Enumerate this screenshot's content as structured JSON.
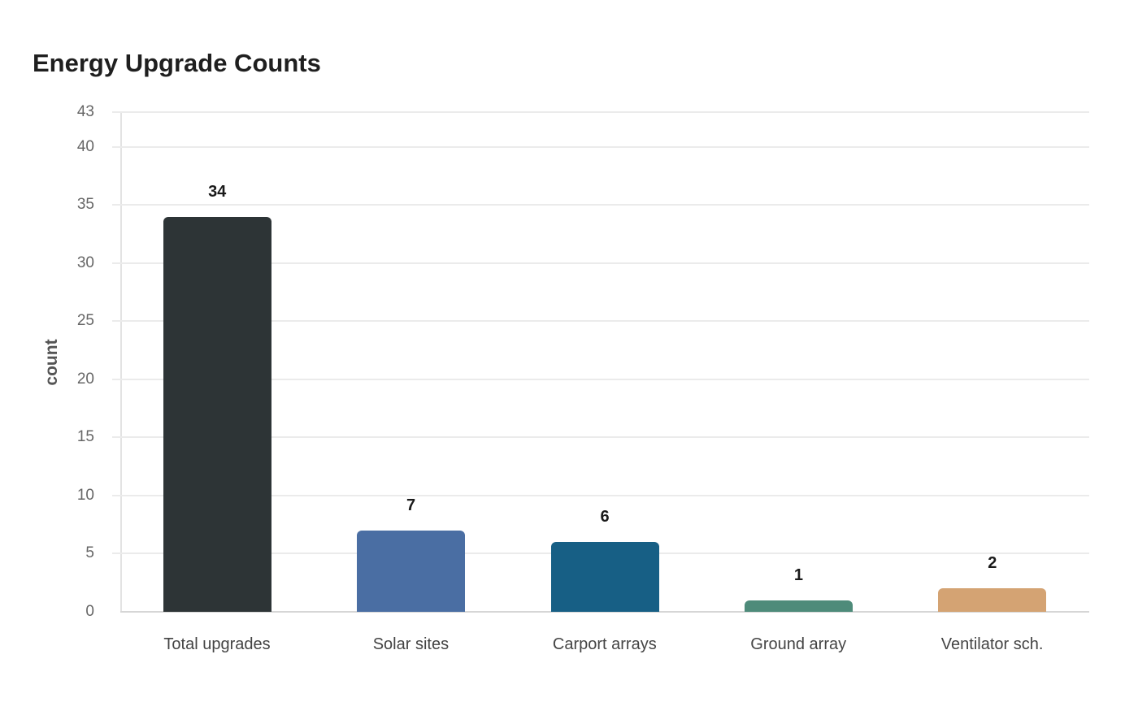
{
  "chart": {
    "title": "Energy Upgrade Counts",
    "ylabel": "count"
  },
  "chart_data": {
    "type": "bar",
    "title": "Energy Upgrade Counts",
    "xlabel": "",
    "ylabel": "count",
    "categories": [
      "Total upgrades",
      "Solar sites",
      "Carport arrays",
      "Ground array",
      "Ventilator sch."
    ],
    "values": [
      34,
      7,
      6,
      1,
      2
    ],
    "colors": [
      "#2d3436",
      "#4a6ea3",
      "#175f85",
      "#4e8b7a",
      "#d4a373"
    ],
    "ylim": [
      0,
      43
    ],
    "yticks": [
      0,
      5,
      10,
      15,
      20,
      25,
      30,
      35,
      40,
      43
    ],
    "grid": true,
    "legend": null,
    "data_labels": true
  }
}
